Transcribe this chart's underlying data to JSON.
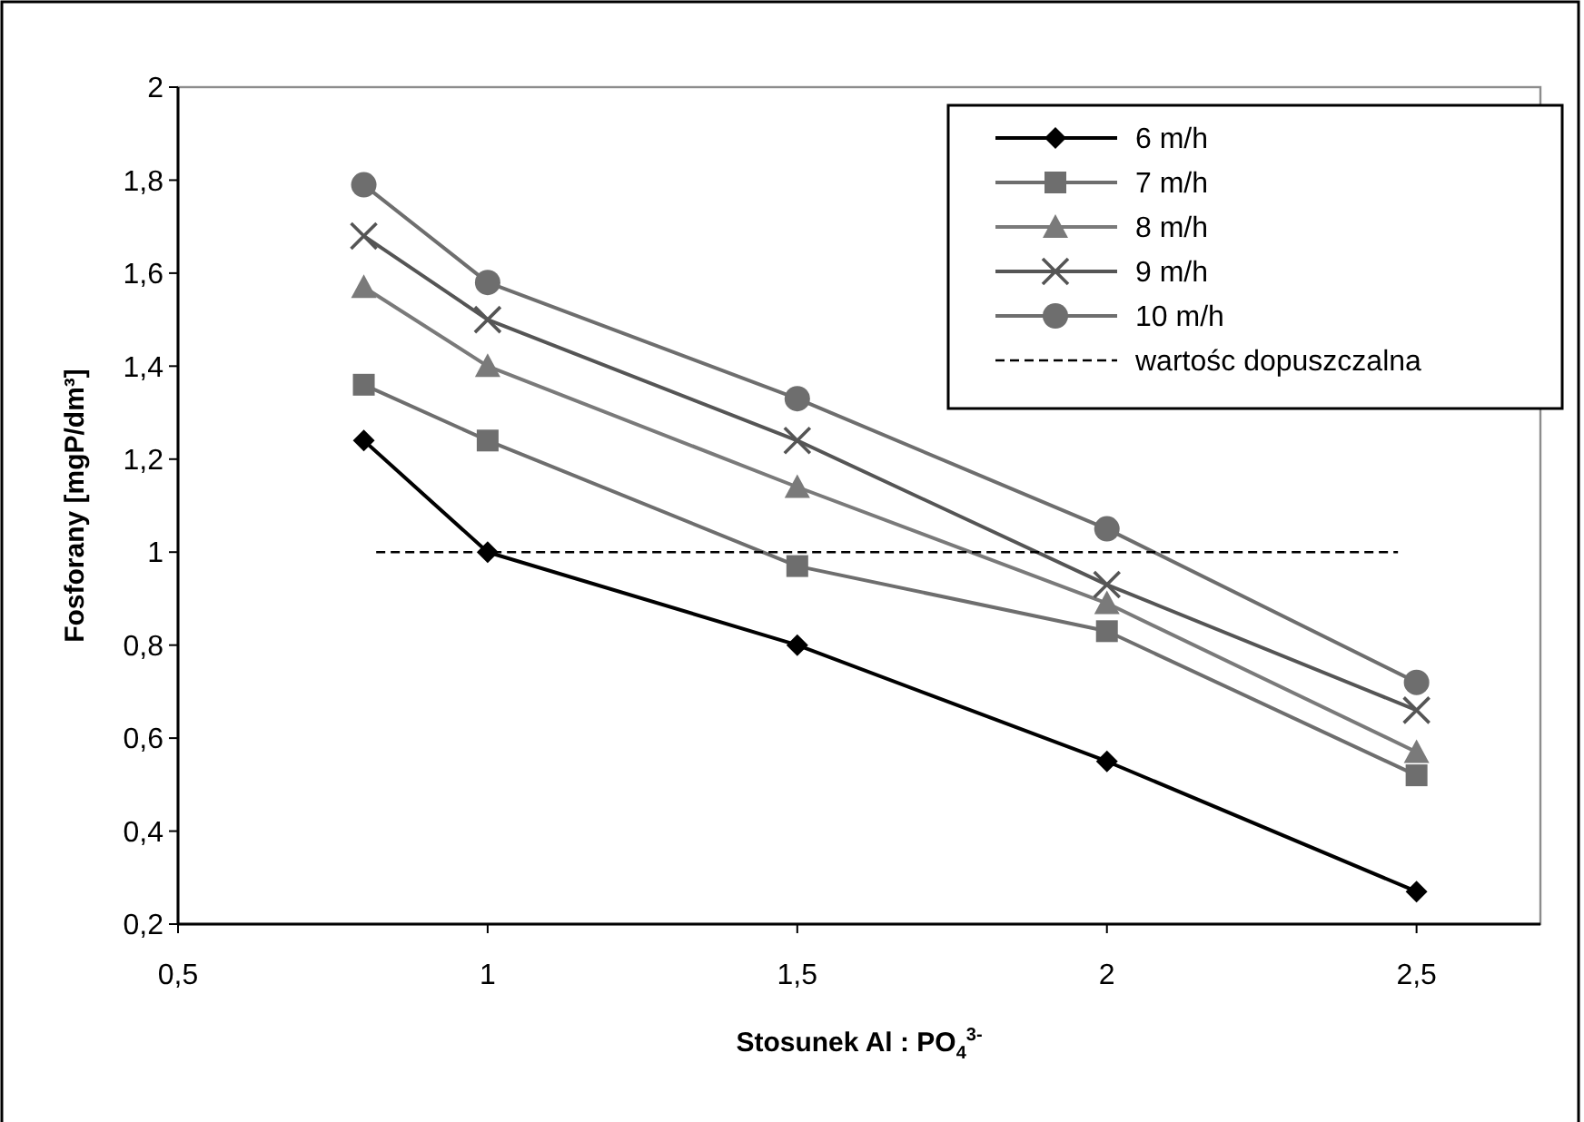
{
  "chart_data": {
    "type": "line",
    "xlabel": "Stosunek Al : PO$_{4}$$^{3-}$",
    "ylabel": "Fosforany [mgP/dm³]",
    "xlim": [
      0.5,
      2.7
    ],
    "xticks": [
      {
        "value": 0.5,
        "label": "0,5"
      },
      1,
      {
        "value": 1.5,
        "label": "1,5"
      },
      2,
      {
        "value": 2.5,
        "label": "2,5"
      }
    ],
    "ylim": [
      0.2,
      2
    ],
    "yticks": [
      {
        "value": 0.2,
        "label": "0,2"
      },
      {
        "value": 0.4,
        "label": "0,4"
      },
      {
        "value": 0.6,
        "label": "0,6"
      },
      {
        "value": 0.8,
        "label": "0,8"
      },
      1,
      {
        "value": 1.2,
        "label": "1,2"
      },
      {
        "value": 1.4,
        "label": "1,4"
      },
      {
        "value": 1.6,
        "label": "1,6"
      },
      {
        "value": 1.8,
        "label": "1,8"
      },
      2
    ],
    "x": [
      0.8,
      1,
      1.5,
      2,
      2.5
    ],
    "grid": false,
    "legend": "top right",
    "series": [
      {
        "name": "6 m/h",
        "color": "#000000",
        "marker": "diamond",
        "values": [
          1.24,
          1.0,
          0.8,
          0.55,
          0.27
        ]
      },
      {
        "name": "7 m/h",
        "color": "#6e6e6e",
        "marker": "square",
        "values": [
          1.36,
          1.24,
          0.97,
          0.83,
          0.52
        ]
      },
      {
        "name": "8 m/h",
        "color": "#7a7a7a",
        "marker": "triangle",
        "values": [
          1.57,
          1.4,
          1.14,
          0.89,
          0.57
        ]
      },
      {
        "name": "9 m/h",
        "color": "#555555",
        "marker": "cross",
        "values": [
          1.68,
          1.5,
          1.24,
          0.93,
          0.66
        ]
      },
      {
        "name": "10 m/h",
        "color": "#6e6e6e",
        "marker": "circle",
        "values": [
          1.79,
          1.58,
          1.33,
          1.05,
          0.72
        ]
      },
      {
        "name": "wartośc dopuszczalna",
        "color": "#000000",
        "marker": "none",
        "line_style": "dashed",
        "x": [
          0.82,
          2.47
        ],
        "values": [
          1,
          1
        ]
      }
    ]
  }
}
